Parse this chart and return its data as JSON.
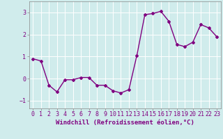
{
  "x": [
    0,
    1,
    2,
    3,
    4,
    5,
    6,
    7,
    8,
    9,
    10,
    11,
    12,
    13,
    14,
    15,
    16,
    17,
    18,
    19,
    20,
    21,
    22,
    23
  ],
  "y": [
    0.9,
    0.8,
    -0.3,
    -0.6,
    -0.05,
    -0.05,
    0.05,
    0.05,
    -0.3,
    -0.3,
    -0.55,
    -0.65,
    -0.5,
    1.05,
    2.9,
    2.95,
    3.05,
    2.6,
    1.55,
    1.45,
    1.65,
    2.45,
    2.3,
    1.9
  ],
  "line_color": "#800080",
  "marker": "D",
  "marker_size": 2,
  "background_color": "#d0ecec",
  "grid_color": "#b0d8d8",
  "xlabel": "Windchill (Refroidissement éolien,°C)",
  "xlim": [
    -0.5,
    23.5
  ],
  "ylim": [
    -1.35,
    3.5
  ],
  "yticks": [
    -1,
    0,
    1,
    2,
    3
  ],
  "xticks": [
    0,
    1,
    2,
    3,
    4,
    5,
    6,
    7,
    8,
    9,
    10,
    11,
    12,
    13,
    14,
    15,
    16,
    17,
    18,
    19,
    20,
    21,
    22,
    23
  ],
  "xlabel_fontsize": 6.5,
  "tick_fontsize": 6,
  "line_width": 1.0
}
